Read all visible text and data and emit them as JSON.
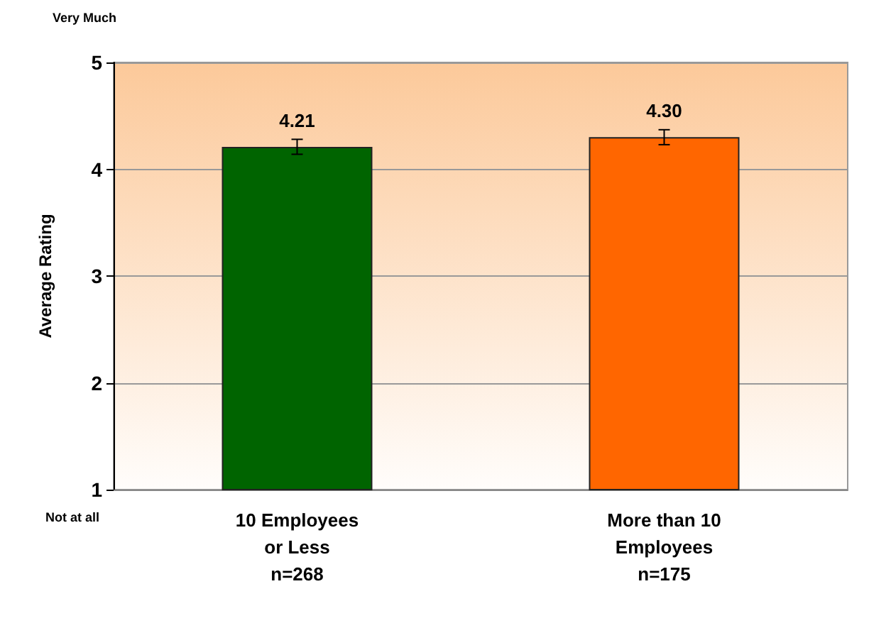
{
  "chart_data": {
    "type": "bar",
    "ylabel": "Average Rating",
    "categories": [
      "10 Employees\nor Less\nn=268",
      "More than 10\nEmployees\nn=175"
    ],
    "values": [
      4.21,
      4.3
    ],
    "colors": [
      "#006400",
      "#ff6600"
    ],
    "value_labels": [
      "4.21",
      "4.30"
    ],
    "errors": [
      0.07,
      0.07
    ],
    "ylim": [
      1,
      5
    ],
    "yticks": [
      1,
      2,
      3,
      4,
      5
    ],
    "grid": "y",
    "annotations": [
      "Very Much",
      "Not at all"
    ]
  }
}
